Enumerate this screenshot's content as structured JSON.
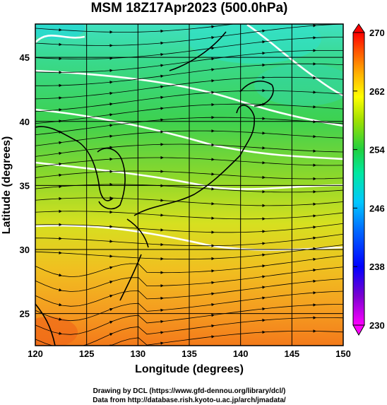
{
  "title": "MSM 18Z17Apr2023 (500.0hPa)",
  "xaxis": {
    "label": "Longitude (degrees)",
    "range": [
      120,
      150
    ],
    "ticks": [
      "120",
      "125",
      "130",
      "135",
      "140",
      "145",
      "150"
    ]
  },
  "yaxis": {
    "label": "Latitude  (degrees)",
    "range": [
      22.5,
      47.6
    ],
    "ticks": [
      "25",
      "30",
      "35",
      "40",
      "45"
    ]
  },
  "colorbar": {
    "range": [
      230,
      270
    ],
    "ticks": [
      "270",
      "262",
      "254",
      "246",
      "238",
      "230"
    ],
    "colors": [
      "#ff00ff",
      "#6a00c8",
      "#0000ff",
      "#0066ff",
      "#00c8ff",
      "#00ffc0",
      "#00e070",
      "#30d030",
      "#a0e000",
      "#ffff00",
      "#ffc000",
      "#ff8000",
      "#ff3000",
      "#ff0000"
    ]
  },
  "credits": {
    "line1": "Drawing by DCL (https://www.gfd-dennou.org/library/dcl/)",
    "line2": "Data from http://database.rish.kyoto-u.ac.jp/arch/jmadata/"
  }
}
